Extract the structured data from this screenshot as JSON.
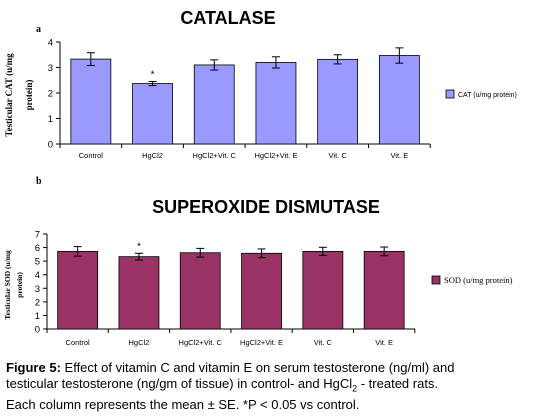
{
  "chart_data": [
    {
      "type": "bar",
      "panel_letter": "a",
      "title": "CATALASE",
      "ylabel_line1": "Testicular CAT (u/mg",
      "ylabel_line2": "protein)",
      "categories": [
        "Control",
        "HgCl2",
        "HgCl2+Vit. C",
        "HgCl2+Vit. E",
        "Vit. C",
        "Vit. E"
      ],
      "series": [
        {
          "name": "CAT (u/mg protein)",
          "values": [
            3.33,
            2.37,
            3.1,
            3.2,
            3.32,
            3.47
          ],
          "errors": [
            0.25,
            0.08,
            0.2,
            0.22,
            0.18,
            0.3
          ]
        }
      ],
      "significance": [
        "",
        "*",
        "",
        "",
        "",
        ""
      ],
      "ylim": [
        0,
        4
      ],
      "yticks": [
        "0",
        "1",
        "2",
        "3",
        "4"
      ],
      "bar_color": "#9999ff",
      "legend_position": "right"
    },
    {
      "type": "bar",
      "panel_letter": "b",
      "title": "SUPEROXIDE DISMUTASE",
      "ylabel_line1": "Testicular SOD (u/mg",
      "ylabel_line2": "protein)",
      "categories": [
        "Control",
        "HgCl2",
        "HgCl2+Vit. C",
        "HgCl2+Vit. E",
        "Vit. C",
        "Vit. E"
      ],
      "series": [
        {
          "name": "SOD (u/mg protein)",
          "values": [
            5.72,
            5.33,
            5.62,
            5.58,
            5.72,
            5.72
          ],
          "errors": [
            0.35,
            0.25,
            0.32,
            0.32,
            0.3,
            0.32
          ]
        }
      ],
      "significance": [
        "",
        "*",
        "",
        "",
        "",
        ""
      ],
      "ylim": [
        0,
        7
      ],
      "yticks": [
        "0",
        "1",
        "2",
        "3",
        "4",
        "5",
        "6",
        "7"
      ],
      "bar_color": "#993366",
      "legend_position": "right"
    }
  ],
  "caption": {
    "label": "Figure 5:",
    "line1": " Effect of vitamin C and vitamin E on serum testosterone (ng/ml) and",
    "line2a": "testicular testosterone (ng/gm of tissue) in control- and HgCl",
    "line2sub": "2",
    "line2b": " - treated rats.",
    "line3": "Each column represents the mean ± SE. *P < 0.05 vs control."
  }
}
